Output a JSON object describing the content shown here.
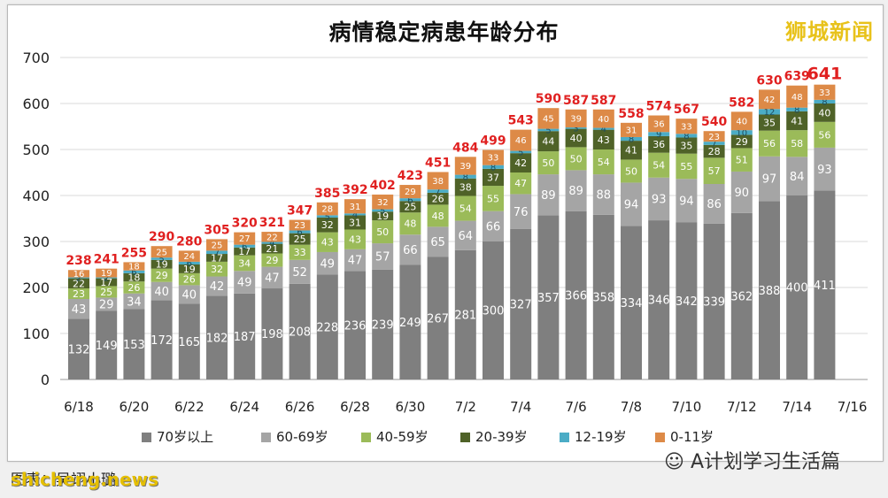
{
  "chart_data": {
    "type": "bar",
    "stacked": true,
    "title": "病情稳定病患年龄分布",
    "ylim": [
      0,
      700
    ],
    "yticks": [
      0,
      100,
      200,
      300,
      400,
      500,
      600,
      700
    ],
    "grid": true,
    "legend_position": "bottom",
    "categories": [
      "6/18",
      "6/19",
      "6/20",
      "6/21",
      "6/22",
      "6/23",
      "6/24",
      "6/25",
      "6/26",
      "6/27",
      "6/28",
      "6/29",
      "6/30",
      "7/1",
      "7/2",
      "7/3",
      "7/4",
      "7/5",
      "7/6",
      "7/7",
      "7/8",
      "7/9",
      "7/10",
      "7/11",
      "7/12",
      "7/13",
      "7/14",
      "7/15"
    ],
    "x_tick_labels": [
      "6/18",
      "6/20",
      "6/22",
      "6/24",
      "6/26",
      "6/28",
      "6/30",
      "7/2",
      "7/4",
      "7/6",
      "7/8",
      "7/10",
      "7/12",
      "7/14",
      "7/16"
    ],
    "series": [
      {
        "name": "70岁以上",
        "color": "#7f7f7f",
        "values": [
          132,
          149,
          153,
          172,
          165,
          182,
          187,
          198,
          208,
          228,
          236,
          239,
          249,
          267,
          281,
          300,
          327,
          357,
          366,
          358,
          334,
          346,
          342,
          339,
          362,
          388,
          400,
          411
        ]
      },
      {
        "name": "60-69岁",
        "color": "#a5a5a5",
        "values": [
          43,
          29,
          34,
          40,
          40,
          42,
          49,
          47,
          52,
          49,
          47,
          57,
          66,
          65,
          64,
          66,
          76,
          89,
          89,
          88,
          94,
          93,
          94,
          86,
          90,
          97,
          84,
          93
        ]
      },
      {
        "name": "40-59岁",
        "color": "#9bbb59",
        "values": [
          23,
          25,
          26,
          29,
          26,
          32,
          34,
          29,
          33,
          43,
          43,
          50,
          48,
          48,
          54,
          55,
          47,
          50,
          50,
          54,
          50,
          54,
          55,
          57,
          51,
          56,
          58,
          56
        ]
      },
      {
        "name": "20-39岁",
        "color": "#4f6228",
        "values": [
          22,
          17,
          18,
          19,
          19,
          17,
          17,
          21,
          25,
          32,
          31,
          19,
          25,
          26,
          38,
          37,
          42,
          44,
          40,
          43,
          41,
          36,
          35,
          28,
          29,
          35,
          41,
          40
        ]
      },
      {
        "name": "12-19岁",
        "color": "#4bacc6",
        "values": [
          2,
          2,
          6,
          5,
          6,
          7,
          6,
          4,
          6,
          5,
          4,
          5,
          6,
          7,
          8,
          8,
          5,
          5,
          3,
          4,
          8,
          9,
          8,
          7,
          10,
          12,
          8,
          8
        ]
      },
      {
        "name": "0-11岁",
        "color": "#dd8a47",
        "values": [
          16,
          19,
          18,
          25,
          24,
          25,
          27,
          22,
          23,
          28,
          31,
          32,
          29,
          38,
          39,
          33,
          46,
          45,
          39,
          40,
          31,
          36,
          33,
          23,
          40,
          42,
          48,
          33
        ]
      }
    ],
    "totals": [
      238,
      241,
      255,
      290,
      280,
      305,
      320,
      321,
      347,
      385,
      392,
      402,
      423,
      451,
      484,
      499,
      543,
      590,
      587,
      587,
      558,
      574,
      567,
      540,
      582,
      630,
      639,
      641
    ]
  },
  "logo_text": "狮城新闻",
  "watermark_text": "A计划学习生活篇",
  "site_text": "shicheng.news",
  "credit_text": "图表：吴翊小璐"
}
